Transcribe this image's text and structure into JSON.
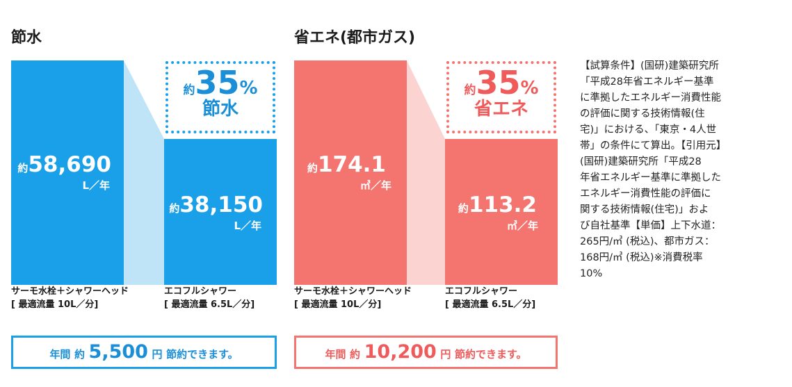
{
  "colors": {
    "water_bar": "#1aa0e8",
    "water_light": "#bfe4f8",
    "water_text": "#1a8fd8",
    "gas_bar": "#f47470",
    "gas_light": "#fbd3d1",
    "gas_text": "#ee5b5a"
  },
  "panels": [
    {
      "title": "節水",
      "unit": "L／年",
      "before": {
        "prefix": "約",
        "value_text": "58,690",
        "value": 58690,
        "label_line1": "サーモ水栓＋シャワーヘッド",
        "label_line2": "[ 最適流量 10L／分]"
      },
      "after": {
        "prefix": "約",
        "value_text": "38,150",
        "value": 38150,
        "label_line1": "エコフルシャワー",
        "label_line2": "[ 最適流量 6.5L／分]"
      },
      "saving": {
        "prefix": "約",
        "percent": "35",
        "symbol": "%",
        "word": "節水"
      },
      "annual": {
        "lead": "年間",
        "prefix": "約",
        "amount": "5,500",
        "unit": "円",
        "tail": "節約できます。"
      }
    },
    {
      "title": "省エネ(都市ガス)",
      "unit": "㎥／年",
      "before": {
        "prefix": "約",
        "value_text": "174.1",
        "value": 174.1,
        "label_line1": "サーモ水栓＋シャワーヘッド",
        "label_line2": "[ 最適流量 10L／分]"
      },
      "after": {
        "prefix": "約",
        "value_text": "113.2",
        "value": 113.2,
        "label_line1": "エコフルシャワー",
        "label_line2": "[ 最適流量 6.5L／分]"
      },
      "saving": {
        "prefix": "約",
        "percent": "35",
        "symbol": "%",
        "word": "省エネ"
      },
      "annual": {
        "lead": "年間",
        "prefix": "約",
        "amount": "10,200",
        "unit": "円",
        "tail": "節約できます。"
      }
    }
  ],
  "notes": [
    "【試算条件】(国研)建築研究所",
    "「平成28年省エネルギー基準",
    "に準拠したエネルギー消費性能",
    "の評価に関する技術情報(住",
    "宅)」における、「東京・4人世",
    "帯」の条件にて算出。【引用元】",
    "(国研)建築研究所「平成28",
    "年省エネルギー基準に準拠した",
    "エネルギー消費性能の評価に",
    "関する技術情報(住宅)」およ",
    "び自社基準【単価】上下水道：",
    "265円/㎥ (税込)、都市ガス：",
    "168円/㎥ (税込)※消費税率",
    "10%"
  ],
  "chart_data": [
    {
      "type": "bar",
      "title": "節水",
      "categories": [
        "サーモ水栓＋シャワーヘッド [最適流量 10L／分]",
        "エコフルシャワー [最適流量 6.5L／分]"
      ],
      "values": [
        58690,
        38150
      ],
      "unit": "L／年",
      "annotation": "約35% 節水",
      "summary": "年間 約 5,500 円 節約できます。"
    },
    {
      "type": "bar",
      "title": "省エネ(都市ガス)",
      "categories": [
        "サーモ水栓＋シャワーヘッド [最適流量 10L／分]",
        "エコフルシャワー [最適流量 6.5L／分]"
      ],
      "values": [
        174.1,
        113.2
      ],
      "unit": "㎥／年",
      "annotation": "約35% 省エネ",
      "summary": "年間 約 10,200 円 節約できます。"
    }
  ]
}
